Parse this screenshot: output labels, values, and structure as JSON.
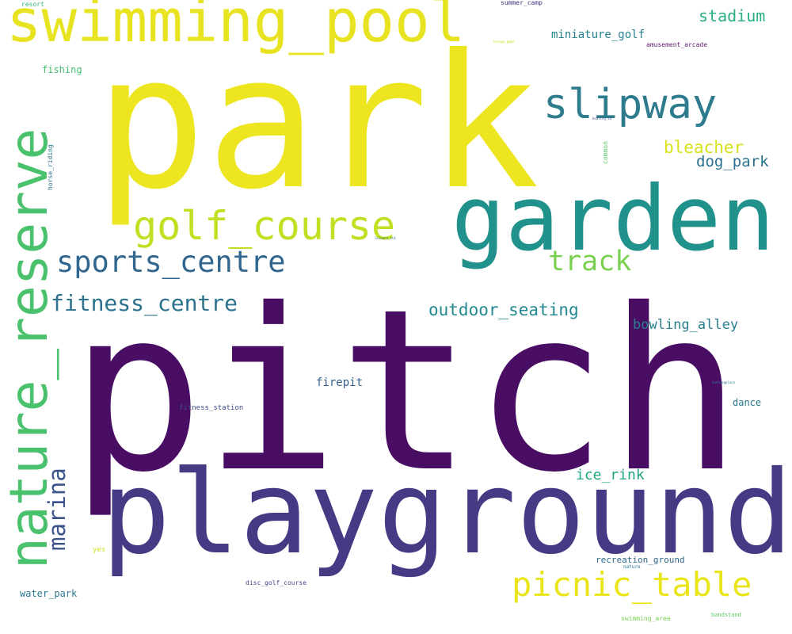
{
  "cloud": {
    "words": [
      {
        "id": "park",
        "text": "park",
        "color": "#ece51f"
      },
      {
        "id": "pitch",
        "text": "pitch",
        "color": "#4a0d64"
      },
      {
        "id": "playground",
        "text": "playground",
        "color": "#443b84"
      },
      {
        "id": "garden",
        "text": "garden",
        "color": "#21918c"
      },
      {
        "id": "swimming_pool",
        "text": "swimming_pool",
        "color": "#e8e320"
      },
      {
        "id": "nature_reserve",
        "text": "nature_reserve",
        "color": "#4ac26d"
      },
      {
        "id": "golf_course",
        "text": "golf_course",
        "color": "#c2df23"
      },
      {
        "id": "slipway",
        "text": "slipway",
        "color": "#2e7b8e"
      },
      {
        "id": "sports_centre",
        "text": "sports_centre",
        "color": "#31668e"
      },
      {
        "id": "picnic_table",
        "text": "picnic_table",
        "color": "#eae51a"
      },
      {
        "id": "track",
        "text": "track",
        "color": "#7ad151"
      },
      {
        "id": "fitness_centre",
        "text": "fitness_centre",
        "color": "#2c728e"
      },
      {
        "id": "marina",
        "text": "marina",
        "color": "#3b528b"
      },
      {
        "id": "outdoor_seating",
        "text": "outdoor_seating",
        "color": "#23898e"
      },
      {
        "id": "stadium",
        "text": "stadium",
        "color": "#2ab07f"
      },
      {
        "id": "bleacher",
        "text": "bleacher",
        "color": "#d8e219"
      },
      {
        "id": "dog_park",
        "text": "dog_park",
        "color": "#2c728e"
      },
      {
        "id": "bowling_alley",
        "text": "bowling_alley",
        "color": "#277f8e"
      },
      {
        "id": "ice_rink",
        "text": "ice_rink",
        "color": "#21a685"
      },
      {
        "id": "miniature_golf",
        "text": "miniature_golf",
        "color": "#26828e"
      },
      {
        "id": "firepit",
        "text": "firepit",
        "color": "#355f8d"
      },
      {
        "id": "dance",
        "text": "dance",
        "color": "#2a788e"
      },
      {
        "id": "fishing",
        "text": "fishing",
        "color": "#44bf70"
      },
      {
        "id": "water_park",
        "text": "water_park",
        "color": "#2a788e"
      },
      {
        "id": "recreation_ground",
        "text": "recreation_ground",
        "color": "#30698e"
      },
      {
        "id": "fitness_station",
        "text": "fitness_station",
        "color": "#3e4989"
      },
      {
        "id": "disc_golf_course",
        "text": "disc_golf_course",
        "color": "#3f4788"
      },
      {
        "id": "amusement_arcade",
        "text": "amusement_arcade",
        "color": "#5b1a6e"
      },
      {
        "id": "summer_camp",
        "text": "summer_camp",
        "color": "#46337e"
      },
      {
        "id": "resort",
        "text": "resort",
        "color": "#35b779"
      },
      {
        "id": "horse_riding",
        "text": "horse_riding",
        "color": "#2c728e"
      },
      {
        "id": "common",
        "text": "common",
        "color": "#56c667"
      },
      {
        "id": "yes",
        "text": "yes",
        "color": "#d0e11c"
      },
      {
        "id": "nature",
        "text": "nature",
        "color": "#2a788e"
      },
      {
        "id": "swimming_area",
        "text": "swimming_area",
        "color": "#7ad151"
      },
      {
        "id": "bandstand",
        "text": "bandstand",
        "color": "#5ec962"
      },
      {
        "id": "escape_game",
        "text": "escape_game",
        "color": "#c8e020"
      },
      {
        "id": "boating",
        "text": "boating_sd",
        "color": "#3b528b"
      },
      {
        "id": "leisure_std",
        "text": "leisure_std",
        "color": "#31688e"
      },
      {
        "id": "bathing_place",
        "text": "bathingplace",
        "color": "#2a788e"
      }
    ]
  }
}
